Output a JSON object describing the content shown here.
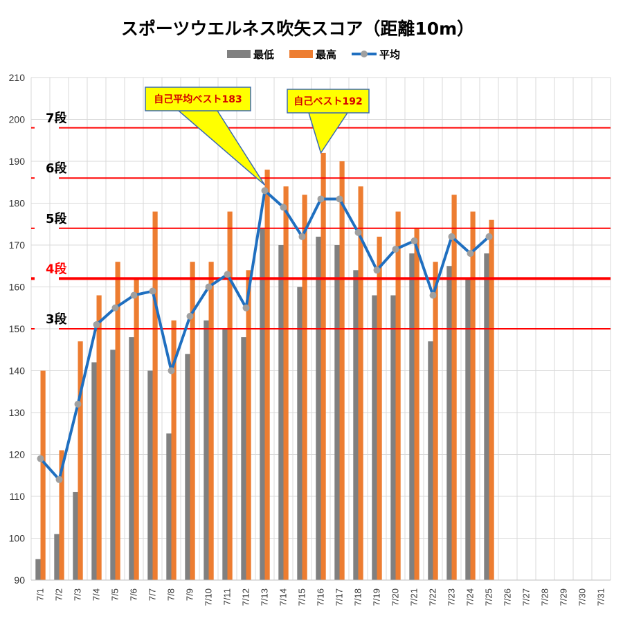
{
  "chart_data": {
    "type": "bar",
    "title": "スポーツウエルネス吹矢スコア（距離10m）",
    "categories": [
      "7/1",
      "7/2",
      "7/3",
      "7/4",
      "7/5",
      "7/6",
      "7/7",
      "7/8",
      "7/9",
      "7/10",
      "7/11",
      "7/12",
      "7/13",
      "7/14",
      "7/15",
      "7/16",
      "7/17",
      "7/18",
      "7/19",
      "7/20",
      "7/21",
      "7/22",
      "7/23",
      "7/24",
      "7/25",
      "7/26",
      "7/27",
      "7/28",
      "7/29",
      "7/30",
      "7/31"
    ],
    "series": [
      {
        "name": "最低",
        "kind": "bar",
        "color": "#808080",
        "values": [
          95,
          101,
          111,
          142,
          145,
          148,
          140,
          125,
          144,
          152,
          150,
          148,
          174,
          170,
          160,
          172,
          170,
          164,
          158,
          158,
          168,
          147,
          165,
          162,
          168,
          null,
          null,
          null,
          null,
          null,
          null
        ]
      },
      {
        "name": "最高",
        "kind": "bar",
        "color": "#ed7d31",
        "values": [
          140,
          121,
          147,
          158,
          166,
          162,
          178,
          152,
          166,
          166,
          178,
          164,
          188,
          184,
          182,
          192,
          190,
          184,
          172,
          178,
          174,
          166,
          182,
          178,
          176,
          null,
          null,
          null,
          null,
          null,
          null
        ]
      },
      {
        "name": "平均",
        "kind": "line",
        "color": "#1f6fc0",
        "marker_color": "#a0a0a0",
        "values": [
          119,
          114,
          132,
          151,
          155,
          158,
          159,
          140,
          153,
          160,
          163,
          155,
          183,
          179,
          172,
          181,
          181,
          173,
          164,
          169,
          171,
          158,
          172,
          168,
          172,
          null,
          null,
          null,
          null,
          null,
          null
        ]
      }
    ],
    "ylim": [
      90,
      210
    ],
    "yticks": [
      90,
      100,
      110,
      120,
      130,
      140,
      150,
      160,
      170,
      180,
      190,
      200,
      210
    ],
    "grid": true,
    "legend_position": "top-center",
    "level_lines": [
      {
        "label": "7段",
        "value": 198,
        "label_color": "#000000",
        "bold": false
      },
      {
        "label": "6段",
        "value": 186,
        "label_color": "#000000",
        "bold": false
      },
      {
        "label": "5段",
        "value": 174,
        "label_color": "#000000",
        "bold": false
      },
      {
        "label": "4段",
        "value": 162,
        "label_color": "#ff0000",
        "bold": true
      },
      {
        "label": "3段",
        "value": 150,
        "label_color": "#000000",
        "bold": false
      }
    ],
    "annotations": [
      {
        "text": "自己平均ベスト183",
        "category": "7/13",
        "value": 183
      },
      {
        "text": "自己ベスト192",
        "category": "7/16",
        "value": 192
      }
    ]
  }
}
